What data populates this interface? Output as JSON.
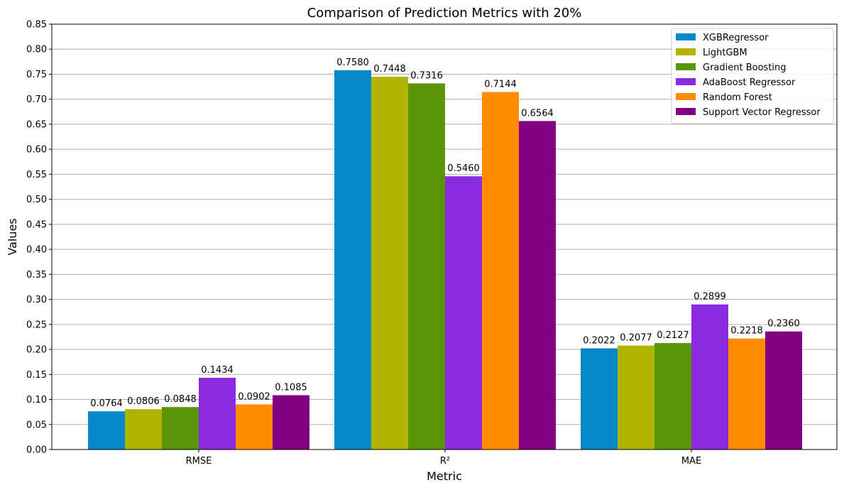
{
  "chart_data": {
    "type": "bar",
    "title": "Comparison of Prediction Metrics with 20%",
    "xlabel": "Metric",
    "ylabel": "Values",
    "categories": [
      "RMSE",
      "R²",
      "MAE"
    ],
    "ylim": [
      0,
      0.85
    ],
    "yticks": [
      "0.00",
      "0.05",
      "0.10",
      "0.15",
      "0.20",
      "0.25",
      "0.30",
      "0.35",
      "0.40",
      "0.45",
      "0.50",
      "0.55",
      "0.60",
      "0.65",
      "0.70",
      "0.75",
      "0.80",
      "0.85"
    ],
    "grid": "horizontal",
    "legend_position": "top-right",
    "series": [
      {
        "name": "XGBRegressor",
        "color": "#0788cb",
        "values": [
          0.0764,
          0.758,
          0.2022
        ],
        "labels": [
          "0.0764",
          "0.7580",
          "0.2022"
        ]
      },
      {
        "name": "LightGBM",
        "color": "#b1b300",
        "values": [
          0.0806,
          0.7448,
          0.2077
        ],
        "labels": [
          "0.0806",
          "0.7448",
          "0.2077"
        ]
      },
      {
        "name": "Gradient Boosting",
        "color": "#589507",
        "values": [
          0.0848,
          0.7316,
          0.2127
        ],
        "labels": [
          "0.0848",
          "0.7316",
          "0.2127"
        ]
      },
      {
        "name": "AdaBoost Regressor",
        "color": "#8a2be2",
        "values": [
          0.1434,
          0.546,
          0.2899
        ],
        "labels": [
          "0.1434",
          "0.5460",
          "0.2899"
        ]
      },
      {
        "name": "Random Forest",
        "color": "#ff8c00",
        "values": [
          0.0902,
          0.7144,
          0.2218
        ],
        "labels": [
          "0.0902",
          "0.7144",
          "0.2218"
        ]
      },
      {
        "name": "Support Vector Regressor",
        "color": "#800080",
        "values": [
          0.1085,
          0.6564,
          0.236
        ],
        "labels": [
          "0.1085",
          "0.6564",
          "0.2360"
        ]
      }
    ]
  }
}
